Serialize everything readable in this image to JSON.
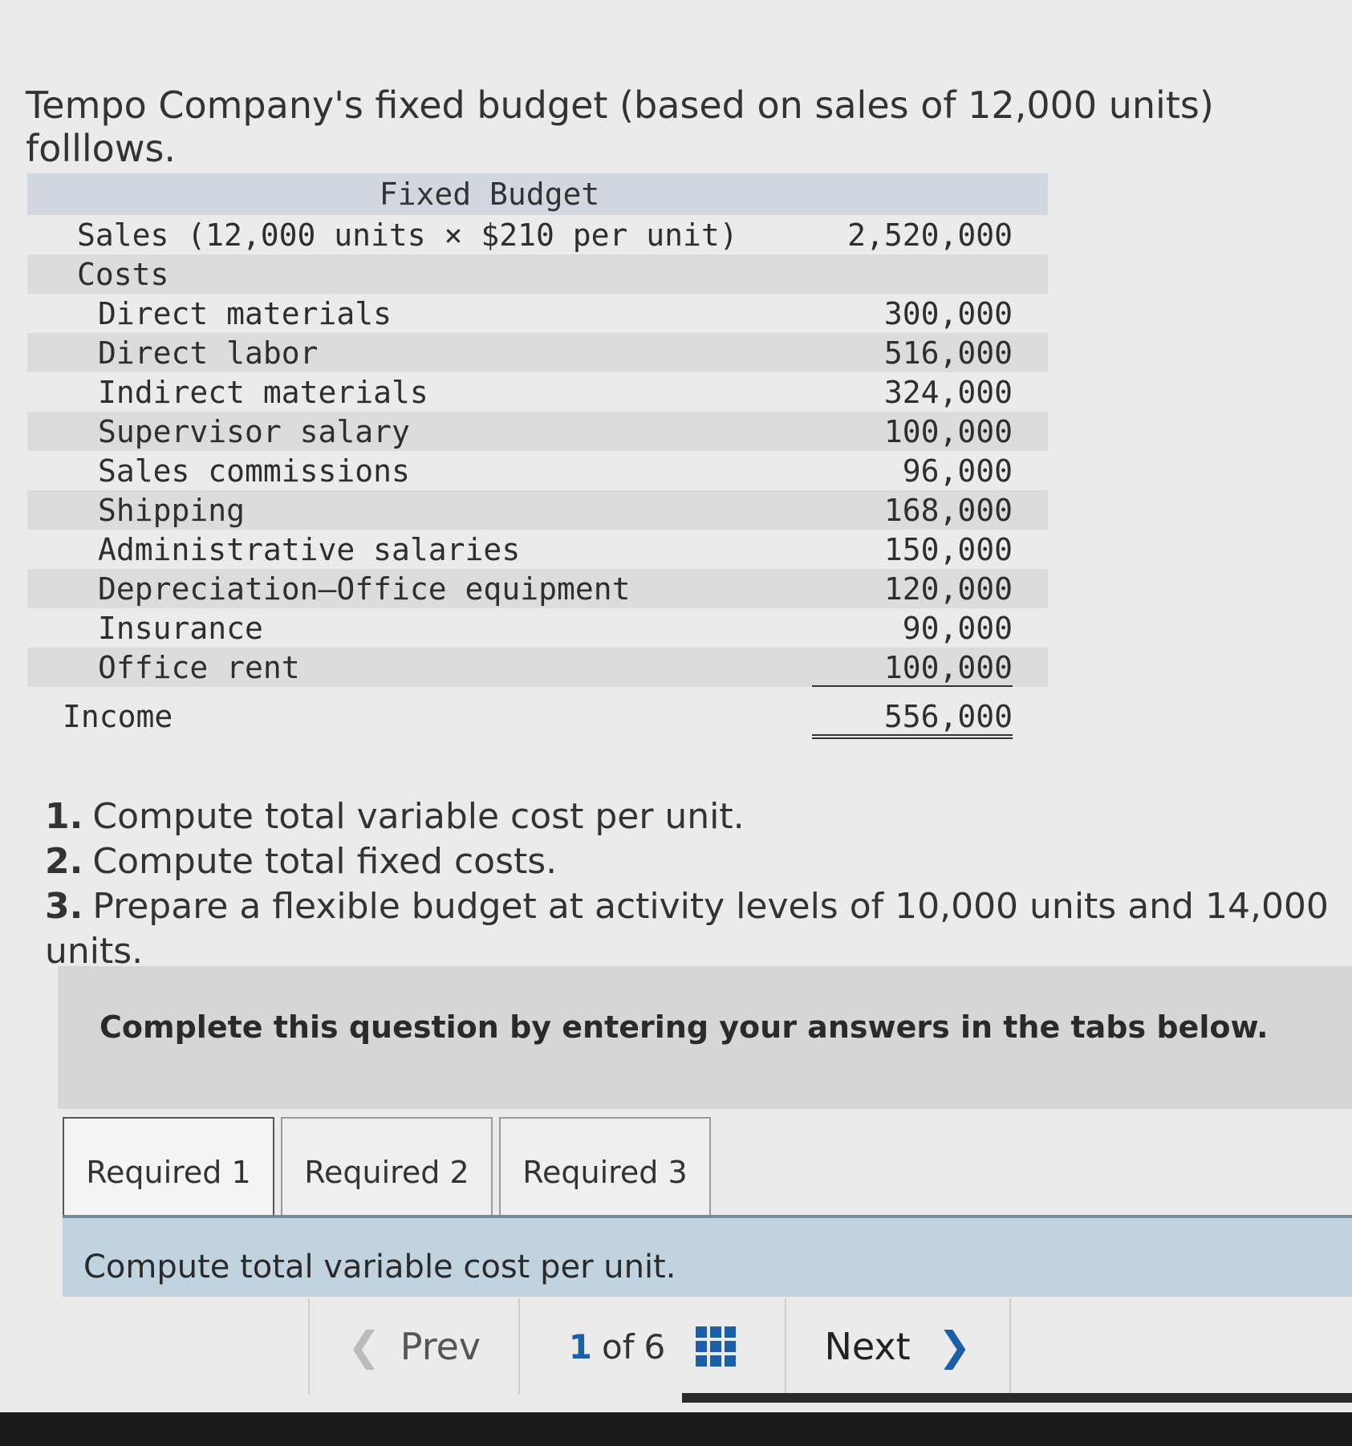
{
  "intro": "Tempo Company's fixed budget (based on sales of 12,000 units) folllows.",
  "budget": {
    "header": "Fixed Budget",
    "sales_label": "Sales (12,000 units × $210 per unit)",
    "sales_value": "2,520,000",
    "costs_label": "Costs",
    "costs": [
      {
        "label": "Direct materials",
        "value": "300,000"
      },
      {
        "label": "Direct labor",
        "value": "516,000"
      },
      {
        "label": "Indirect materials",
        "value": "324,000"
      },
      {
        "label": "Supervisor salary",
        "value": "100,000"
      },
      {
        "label": "Sales commissions",
        "value": "96,000"
      },
      {
        "label": "Shipping",
        "value": "168,000"
      },
      {
        "label": "Administrative salaries",
        "value": "150,000"
      },
      {
        "label": "Depreciation—Office equipment",
        "value": "120,000"
      },
      {
        "label": "Insurance",
        "value": "90,000"
      },
      {
        "label": "Office rent",
        "value": "100,000"
      }
    ],
    "income_label": "Income",
    "income_value": "556,000"
  },
  "questions": [
    {
      "num": "1.",
      "text": "Compute total variable cost per unit."
    },
    {
      "num": "2.",
      "text": "Compute total fixed costs."
    },
    {
      "num": "3.",
      "text": "Prepare a flexible budget at activity levels of 10,000 units and 14,000 units."
    }
  ],
  "instruction": "Complete this question by entering your answers in the tabs below.",
  "tabs": [
    {
      "label": "Required 1"
    },
    {
      "label": "Required 2"
    },
    {
      "label": "Required 3"
    }
  ],
  "panel_text": "Compute total variable cost per unit.",
  "nav": {
    "prev": "Prev",
    "current": "1",
    "of": "of",
    "total": "6",
    "next": "Next",
    "prev_icon": "chevron-left-icon",
    "next_icon": "chevron-right-icon",
    "grid_icon": "grid-icon"
  },
  "colors": {
    "accent": "#1d5fa6",
    "panel": "#c2d3e0",
    "header": "#d3d8e0"
  }
}
